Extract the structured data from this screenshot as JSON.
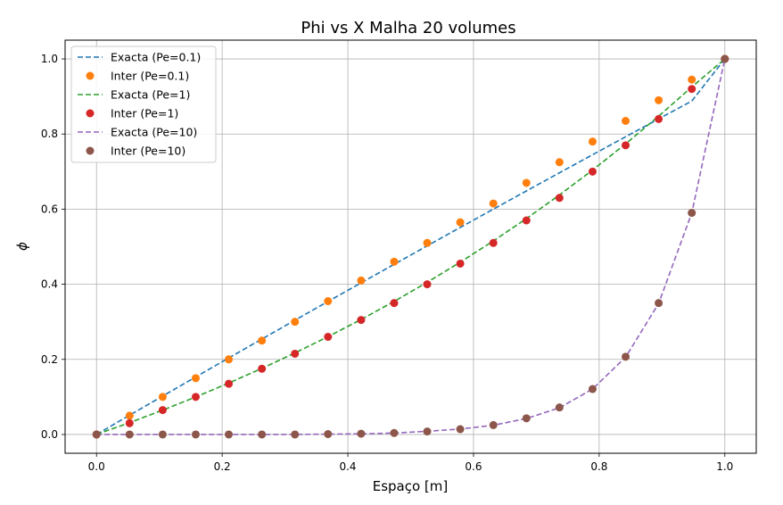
{
  "chart_data": {
    "type": "line",
    "title": "Phi vs X Malha 20 volumes",
    "xlabel": "Espaço [m]",
    "ylabel": "ϕ",
    "xlim": [
      -0.05,
      1.05
    ],
    "ylim": [
      -0.05,
      1.05
    ],
    "xticks": [
      "0.0",
      "0.2",
      "0.4",
      "0.6",
      "0.8",
      "1.0"
    ],
    "yticks": [
      "0.0",
      "0.2",
      "0.4",
      "0.6",
      "0.8",
      "1.0"
    ],
    "grid": true,
    "legend_position": "top-left",
    "x": [
      0.0,
      0.0526,
      0.1053,
      0.1579,
      0.2105,
      0.2632,
      0.3158,
      0.3684,
      0.4211,
      0.4737,
      0.5263,
      0.5789,
      0.6316,
      0.6842,
      0.7368,
      0.7895,
      0.8421,
      0.8947,
      0.9474,
      1.0
    ],
    "series": [
      {
        "name": "Exacta (Pe=0.1)",
        "style": "dashed",
        "color": "#1f77b4",
        "values": [
          0.0,
          0.0513,
          0.1024,
          0.1532,
          0.2038,
          0.2541,
          0.3042,
          0.3541,
          0.4037,
          0.4531,
          0.5023,
          0.5513,
          0.6,
          0.6485,
          0.6968,
          0.7449,
          0.7927,
          0.8404,
          0.8878,
          1.0
        ]
      },
      {
        "name": "Inter (Pe=0.1)",
        "style": "markers",
        "color": "#ff7f0e",
        "values": [
          0.0,
          0.05,
          0.1,
          0.15,
          0.2,
          0.25,
          0.3,
          0.355,
          0.41,
          0.46,
          0.51,
          0.565,
          0.615,
          0.67,
          0.725,
          0.78,
          0.835,
          0.89,
          0.945,
          1.0
        ]
      },
      {
        "name": "Exacta (Pe=1)",
        "style": "dashed",
        "color": "#2ca02c",
        "values": [
          0.0,
          0.0315,
          0.0648,
          0.0999,
          0.1369,
          0.176,
          0.2171,
          0.2605,
          0.3062,
          0.3544,
          0.4052,
          0.4588,
          0.5153,
          0.5748,
          0.6377,
          0.704,
          0.7739,
          0.8476,
          0.9253,
          1.0
        ]
      },
      {
        "name": "Inter (Pe=1)",
        "style": "markers",
        "color": "#d62728",
        "values": [
          0.0,
          0.03,
          0.065,
          0.1,
          0.135,
          0.175,
          0.215,
          0.26,
          0.305,
          0.35,
          0.4,
          0.455,
          0.51,
          0.57,
          0.63,
          0.7,
          0.77,
          0.84,
          0.92,
          1.0
        ]
      },
      {
        "name": "Exacta (Pe=10)",
        "style": "dashed",
        "color": "#9467bd",
        "values": [
          0.0,
          0.0,
          0.0,
          0.0,
          0.0,
          0.0,
          0.0002,
          0.0008,
          0.0017,
          0.0038,
          0.0085,
          0.0145,
          0.0245,
          0.0425,
          0.071,
          0.121,
          0.206,
          0.349,
          0.59,
          1.0
        ]
      },
      {
        "name": "Inter (Pe=10)",
        "style": "markers",
        "color": "#8c564b",
        "values": [
          0.0,
          0.0,
          0.0,
          0.0,
          0.0,
          0.0,
          0.0,
          0.001,
          0.002,
          0.004,
          0.008,
          0.014,
          0.025,
          0.043,
          0.072,
          0.121,
          0.207,
          0.35,
          0.59,
          1.0
        ]
      }
    ]
  }
}
